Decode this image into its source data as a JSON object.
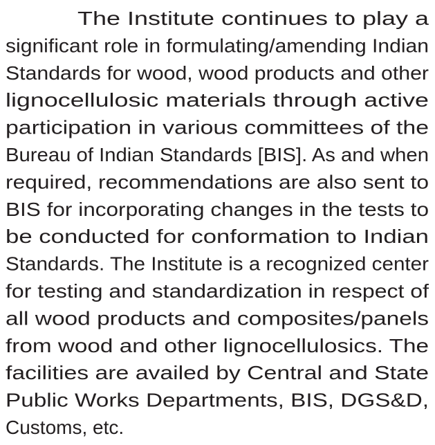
{
  "paragraph": {
    "lines": [
      "The Institute continues to play a",
      "significant role in formulating/amending Indian",
      "Standards for wood, wood products and other",
      "lignocellulosic materials through active",
      "participation in various committees of the",
      "Bureau of Indian Standards [BIS]. As and when",
      "required, recommendations are also sent to",
      "BIS for incorporating changes in the tests to",
      "be conducted for conformation to Indian",
      "Standards. The Institute is a recognized center",
      "for testing and standardization in respect of",
      "all wood products and composites/panels",
      "from wood and other lignocellulosics. The",
      "facilities are availed by Central and State",
      "Public Works Departments, BIS, DGS&D,",
      "Customs, etc."
    ]
  }
}
